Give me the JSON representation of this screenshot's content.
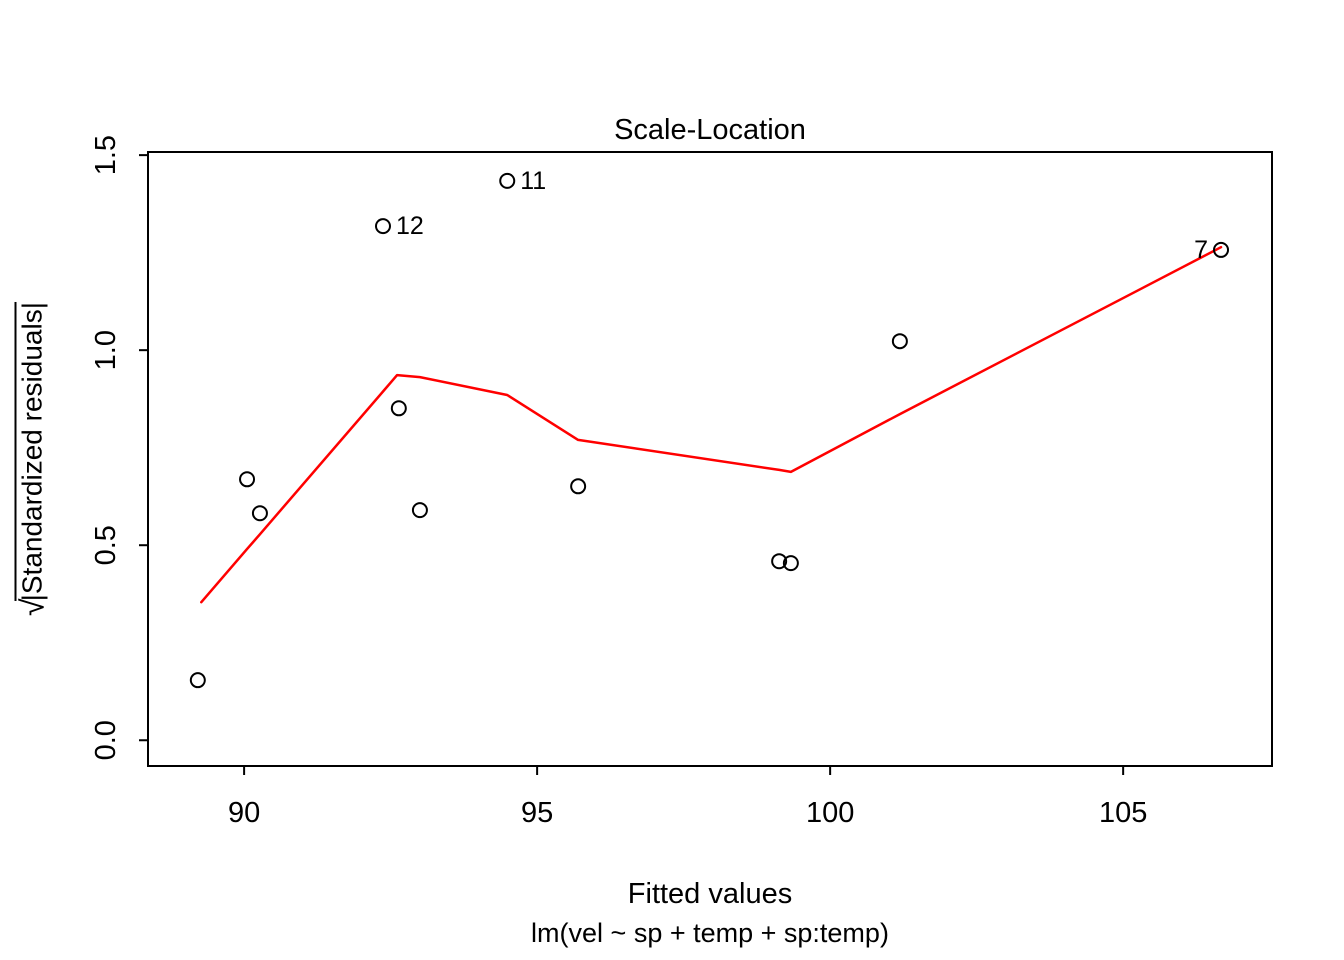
{
  "figure": {
    "title": "Scale-Location",
    "xlabel": "Fitted values",
    "sub": "lm(vel ~ sp + temp + sp:temp)",
    "ylabel_sqrt": "√",
    "ylabel_expr": "|Standardized residuals|"
  },
  "chart_data": {
    "type": "scatter",
    "title": "Scale-Location",
    "xlabel": "Fitted values",
    "ylabel": "sqrt(|Standardized residuals|)",
    "model": "lm(vel ~ sp + temp + sp:temp)",
    "xlim": [
      88.36,
      107.54
    ],
    "ylim": [
      -0.066,
      1.508
    ],
    "xticks": [
      90,
      95,
      100,
      105
    ],
    "xtick_labels": [
      "90",
      "95",
      "100",
      "105"
    ],
    "yticks": [
      0.0,
      0.5,
      1.0,
      1.5
    ],
    "ytick_labels": [
      "0.0",
      "0.5",
      "1.0",
      "1.5"
    ],
    "point_color": "#000000",
    "smoother_color": "#ff0000",
    "points": [
      {
        "x": 89.21,
        "y": 0.154
      },
      {
        "x": 90.05,
        "y": 0.669
      },
      {
        "x": 90.27,
        "y": 0.582
      },
      {
        "x": 92.37,
        "y": 1.318,
        "label": "12",
        "label_side": "right"
      },
      {
        "x": 92.64,
        "y": 0.851
      },
      {
        "x": 93.0,
        "y": 0.59
      },
      {
        "x": 94.49,
        "y": 1.434,
        "label": "11",
        "label_side": "right"
      },
      {
        "x": 95.7,
        "y": 0.651
      },
      {
        "x": 99.13,
        "y": 0.459
      },
      {
        "x": 99.33,
        "y": 0.454
      },
      {
        "x": 101.19,
        "y": 1.023
      },
      {
        "x": 106.67,
        "y": 1.257,
        "label": "7",
        "label_side": "left"
      }
    ],
    "smoother": [
      {
        "x": 89.27,
        "y": 0.354
      },
      {
        "x": 90.05,
        "y": 0.49
      },
      {
        "x": 90.27,
        "y": 0.528
      },
      {
        "x": 92.37,
        "y": 0.894
      },
      {
        "x": 92.61,
        "y": 0.936
      },
      {
        "x": 93.0,
        "y": 0.931
      },
      {
        "x": 94.49,
        "y": 0.885
      },
      {
        "x": 95.7,
        "y": 0.77
      },
      {
        "x": 99.13,
        "y": 0.693
      },
      {
        "x": 99.33,
        "y": 0.688
      },
      {
        "x": 101.19,
        "y": 0.836
      },
      {
        "x": 106.67,
        "y": 1.264
      }
    ]
  }
}
